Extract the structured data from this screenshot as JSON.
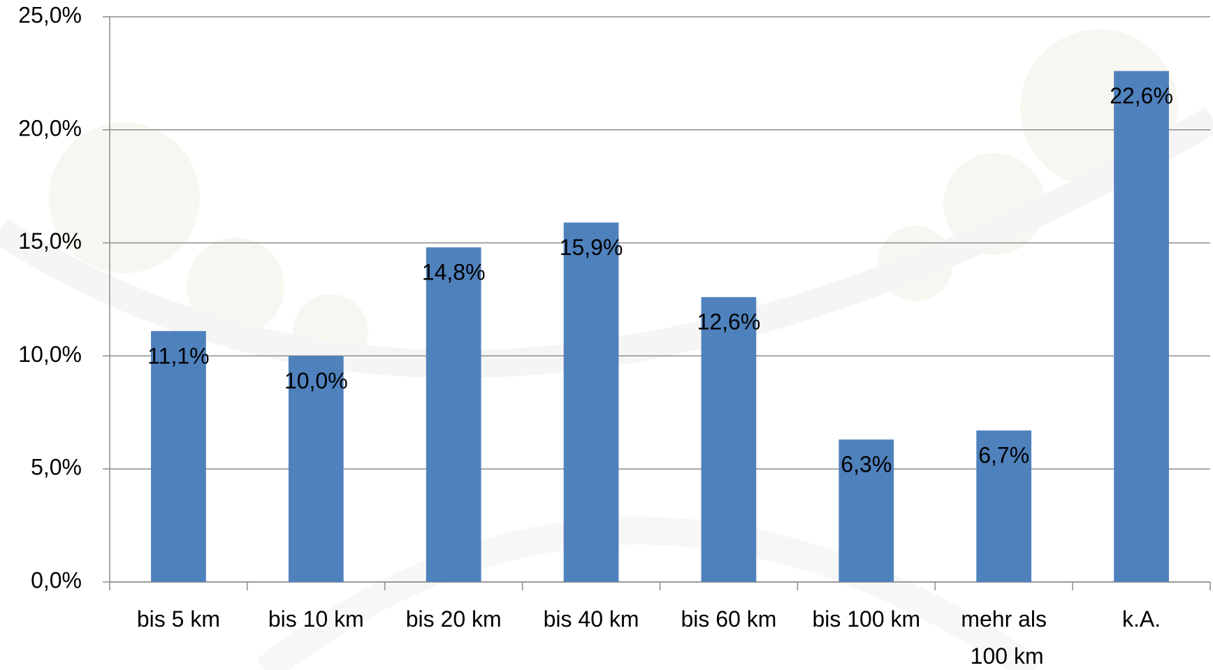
{
  "chart_data": {
    "type": "bar",
    "categories": [
      "bis 5 km",
      "bis 10 km",
      "bis 20 km",
      "bis 40 km",
      "bis 60 km",
      "bis 100 km",
      "mehr als 100 km",
      "k.A."
    ],
    "values": [
      11.1,
      10.0,
      14.8,
      15.9,
      12.6,
      6.3,
      6.7,
      22.6
    ],
    "value_labels": [
      "11,1%",
      "10,0%",
      "14,8%",
      "15,9%",
      "12,6%",
      "6,3%",
      "6,7%",
      "22,6%"
    ],
    "color": "#4f81bd",
    "ylim": [
      0,
      25
    ],
    "yticks": [
      {
        "value": 0,
        "label": "0,0%"
      },
      {
        "value": 5,
        "label": "5,0%"
      },
      {
        "value": 10,
        "label": "10,0%"
      },
      {
        "value": 15,
        "label": "15,0%"
      },
      {
        "value": 20,
        "label": "20,0%"
      },
      {
        "value": 25,
        "label": "25,0%"
      }
    ],
    "grid": true
  }
}
